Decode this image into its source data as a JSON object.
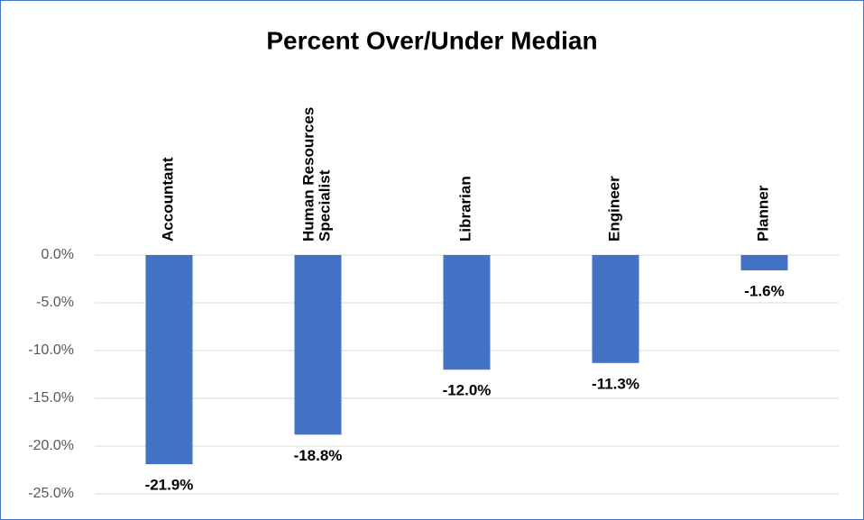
{
  "chart_data": {
    "type": "bar",
    "title": "Percent Over/Under Median",
    "categories": [
      "Accountant",
      "Human Resources Specialist",
      "Librarian",
      "Engineer",
      "Planner"
    ],
    "values": [
      -21.9,
      -18.8,
      -12.0,
      -11.3,
      -1.6
    ],
    "value_labels": [
      "-21.9%",
      "-18.8%",
      "-12.0%",
      "-11.3%",
      "-1.6%"
    ],
    "color": "#4472c4",
    "ylim": [
      -25,
      0
    ],
    "yticks": [
      {
        "value": 0,
        "label": "0.0%"
      },
      {
        "value": -5,
        "label": "-5.0%"
      },
      {
        "value": -10,
        "label": "-10.0%"
      },
      {
        "value": -15,
        "label": "-15.0%"
      },
      {
        "value": -20,
        "label": "-20.0%"
      },
      {
        "value": -25,
        "label": "-25.0%"
      }
    ],
    "grid": true
  }
}
